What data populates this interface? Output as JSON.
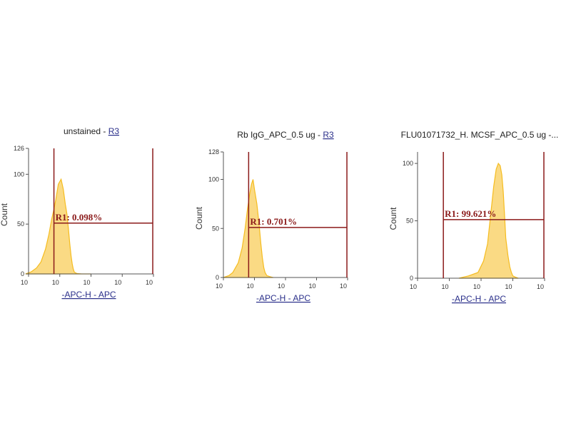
{
  "colors": {
    "histogram": "#f5bc1f",
    "gate": "#8b1a1a",
    "axis": "#555555",
    "link": "#2a2f8a"
  },
  "chart_data": [
    {
      "type": "area",
      "title_prefix": "unstained - ",
      "title_link": "R3",
      "xlabel": "-APC-H - APC",
      "ylabel": "Count",
      "x_scale": "log",
      "xlim": [
        1,
        10000
      ],
      "x_ticks": [
        "10",
        "10",
        "10",
        "10",
        "10"
      ],
      "ylim": [
        0,
        126
      ],
      "y_ticks": [
        0,
        50,
        100,
        126
      ],
      "gate": {
        "label": "R1: 0.098%",
        "x_start": 6.5,
        "x_end": 9500,
        "y_level": 51
      },
      "histogram": {
        "x": [
          0.8,
          1.2,
          1.8,
          2.5,
          3.5,
          4.5,
          5.5,
          6.5,
          7.5,
          9,
          11,
          13,
          15,
          17,
          19,
          21,
          23,
          25,
          27,
          29,
          32,
          35,
          40,
          50,
          70,
          100
        ],
        "y": [
          0,
          2,
          6,
          12,
          25,
          40,
          55,
          65,
          75,
          90,
          95,
          85,
          70,
          60,
          45,
          30,
          18,
          10,
          5,
          2,
          1,
          0.5,
          0.3,
          0,
          0,
          0
        ]
      }
    },
    {
      "type": "area",
      "title_prefix": "Rb IgG_APC_0.5 ug - ",
      "title_link": "R3",
      "xlabel": "-APC-H - APC",
      "ylabel": "Count",
      "x_scale": "log",
      "xlim": [
        1,
        10000
      ],
      "x_ticks": [
        "10",
        "10",
        "10",
        "10",
        "10"
      ],
      "ylim": [
        0,
        128
      ],
      "y_ticks": [
        0,
        50,
        100,
        128
      ],
      "gate": {
        "label": "R1: 0.701%",
        "x_start": 6.5,
        "x_end": 9500,
        "y_level": 51
      },
      "histogram": {
        "x": [
          1,
          1.5,
          2,
          3,
          4,
          5,
          6,
          7,
          8,
          9,
          10,
          12,
          14,
          16,
          18,
          20,
          22,
          25,
          30,
          40
        ],
        "y": [
          0,
          2,
          5,
          15,
          30,
          50,
          70,
          85,
          95,
          100,
          90,
          75,
          55,
          35,
          20,
          10,
          5,
          2,
          1,
          0
        ]
      }
    },
    {
      "type": "area",
      "title_prefix": "FLU01071732_H. MCSF_APC_0.5 ug -...",
      "title_link": "",
      "xlabel": "-APC-H - APC",
      "ylabel": "Count",
      "x_scale": "log",
      "xlim": [
        1,
        10000
      ],
      "x_ticks": [
        "10",
        "10",
        "10",
        "10",
        "10"
      ],
      "ylim": [
        0,
        110
      ],
      "y_ticks": [
        0,
        50,
        100
      ],
      "gate": {
        "label": "R1: 99.621%",
        "x_start": 6.5,
        "x_end": 9500,
        "y_level": 51
      },
      "histogram": {
        "x": [
          20,
          40,
          80,
          120,
          160,
          200,
          250,
          300,
          350,
          400,
          450,
          500,
          550,
          600,
          700,
          800,
          900,
          1000,
          1200,
          1500
        ],
        "y": [
          0,
          2,
          5,
          15,
          30,
          55,
          80,
          95,
          100,
          98,
          90,
          75,
          55,
          35,
          20,
          10,
          5,
          2,
          1,
          0
        ]
      }
    }
  ]
}
